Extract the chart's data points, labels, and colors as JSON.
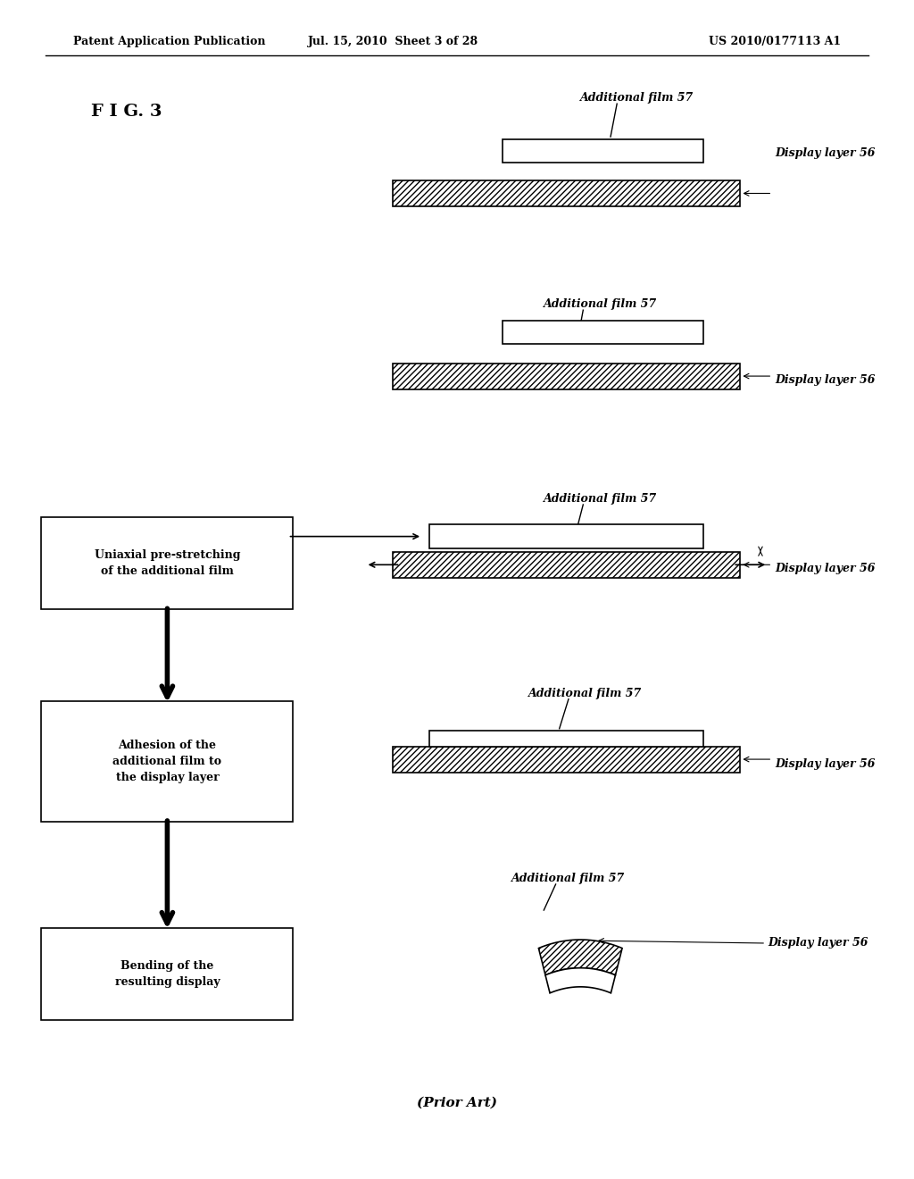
{
  "title_left": "Patent Application Publication",
  "title_center": "Jul. 15, 2010  Sheet 3 of 28",
  "title_right": "US 2010/0177113 A1",
  "fig_label": "F I G. 3",
  "prior_art": "(Prior Art)",
  "background_color": "#ffffff",
  "text_color": "#000000"
}
